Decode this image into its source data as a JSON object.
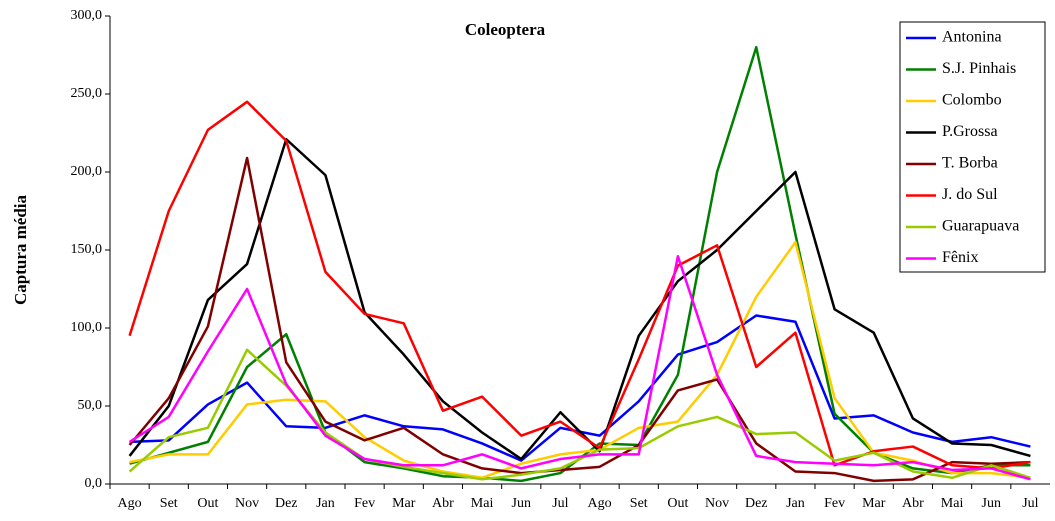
{
  "chart_data": {
    "type": "line",
    "title": "Coleoptera",
    "y_label": "Captura média",
    "categories": [
      "Ago",
      "Set",
      "Out",
      "Nov",
      "Dez",
      "Jan",
      "Fev",
      "Mar",
      "Abr",
      "Mai",
      "Jun",
      "Jul",
      "Ago",
      "Set",
      "Out",
      "Nov",
      "Dez",
      "Jan",
      "Fev",
      "Mar",
      "Abr",
      "Mai",
      "Jun",
      "Jul"
    ],
    "ylim": [
      0,
      300
    ],
    "yticks": [
      {
        "value": 0,
        "label": "0,0"
      },
      {
        "value": 50,
        "label": "50,0"
      },
      {
        "value": 100,
        "label": "100,0"
      },
      {
        "value": 150,
        "label": "150,0"
      },
      {
        "value": 200,
        "label": "200,0"
      },
      {
        "value": 250,
        "label": "250,0"
      },
      {
        "value": 300,
        "label": "300,0"
      }
    ],
    "grid": false,
    "legend": "upper right",
    "series": [
      {
        "name": "Antonina",
        "color": "#0000ff",
        "values": [
          27,
          28,
          51,
          65,
          37,
          36,
          44,
          37,
          35,
          26,
          15,
          36,
          31,
          53,
          83,
          91,
          108,
          104,
          42,
          44,
          33,
          27,
          30,
          24
        ]
      },
      {
        "name": "S.J. Pinhais",
        "color": "#008000",
        "values": [
          13,
          20,
          27,
          75,
          96,
          33,
          14,
          10,
          5,
          4,
          2,
          7,
          26,
          25,
          70,
          200,
          280,
          160,
          45,
          20,
          10,
          7,
          12,
          12
        ]
      },
      {
        "name": "Colombo",
        "color": "#ffcc00",
        "values": [
          14,
          19,
          19,
          51,
          54,
          53,
          30,
          15,
          8,
          4,
          13,
          19,
          22,
          36,
          40,
          70,
          120,
          155,
          55,
          20,
          15,
          7,
          7,
          4
        ]
      },
      {
        "name": "P.Grossa",
        "color": "#000000",
        "values": [
          18,
          50,
          118,
          141,
          221,
          198,
          110,
          83,
          53,
          33,
          16,
          46,
          21,
          95,
          130,
          150,
          175,
          200,
          112,
          97,
          42,
          26,
          25,
          18
        ]
      },
      {
        "name": "T. Borba",
        "color": "#800000",
        "values": [
          25,
          55,
          101,
          209,
          78,
          40,
          28,
          36,
          19,
          10,
          7,
          9,
          11,
          25,
          60,
          67,
          26,
          8,
          7,
          2,
          3,
          14,
          13,
          14
        ]
      },
      {
        "name": "J. do Sul",
        "color": "#ff0000",
        "values": [
          95,
          175,
          227,
          245,
          220,
          136,
          109,
          103,
          47,
          56,
          31,
          40,
          23,
          80,
          140,
          153,
          75,
          97,
          12,
          21,
          24,
          12,
          10,
          14
        ]
      },
      {
        "name": "Guarapuava",
        "color": "#99cc00",
        "values": [
          8,
          30,
          36,
          86,
          63,
          33,
          16,
          11,
          7,
          3,
          6,
          10,
          22,
          23,
          37,
          43,
          32,
          33,
          15,
          20,
          8,
          4,
          12,
          4
        ]
      },
      {
        "name": "Fênix",
        "color": "#ff00ff",
        "values": [
          27,
          43,
          85,
          125,
          64,
          31,
          16,
          12,
          12,
          19,
          10,
          16,
          19,
          19,
          146,
          70,
          18,
          14,
          13,
          12,
          14,
          9,
          10,
          3
        ]
      }
    ]
  }
}
